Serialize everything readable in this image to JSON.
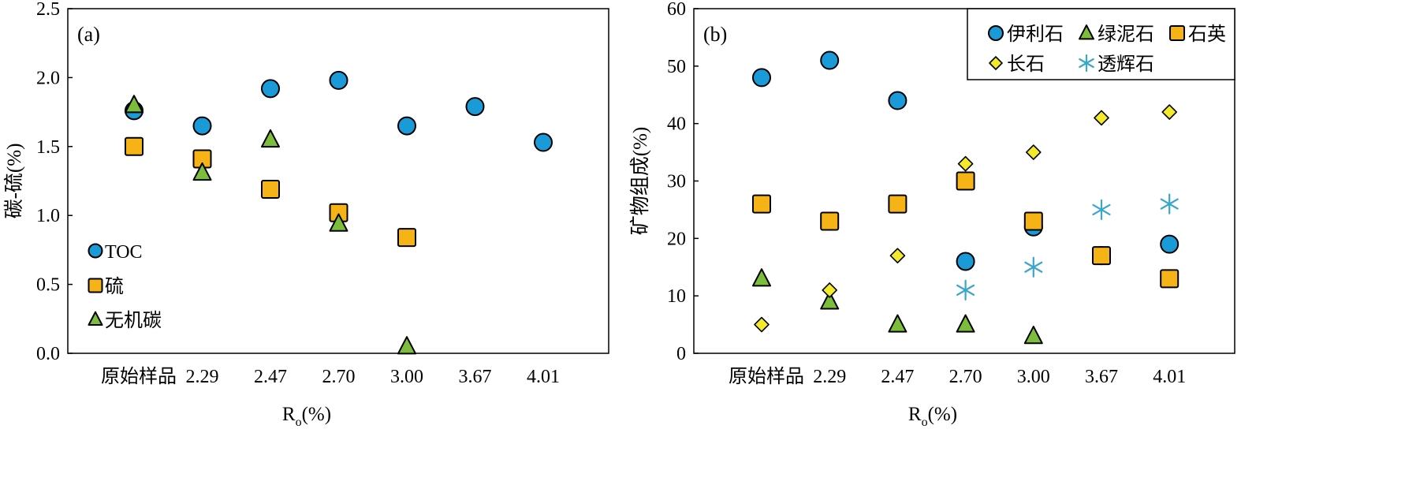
{
  "chart_data": [
    {
      "type": "scatter",
      "panel_label": "(a)",
      "xlabel": "Ro(%)",
      "ylabel": "碳-硫(%)",
      "categories": [
        "原始样品",
        "2.29",
        "2.47",
        "2.70",
        "3.00",
        "3.67",
        "4.01"
      ],
      "ylim": [
        0,
        2.5
      ],
      "yticks": [
        "0.0",
        "0.5",
        "1.0",
        "1.5",
        "2.0",
        "2.5"
      ],
      "grid": false,
      "legend_position": "bottom-left",
      "series": [
        {
          "name": "TOC",
          "marker": "circle",
          "color": "#1a9ad7",
          "values": [
            1.76,
            1.65,
            1.92,
            1.98,
            1.65,
            1.79,
            1.53
          ]
        },
        {
          "name": "硫",
          "marker": "square",
          "color": "#f5b316",
          "values": [
            1.5,
            1.41,
            1.19,
            1.02,
            0.84,
            null,
            null
          ]
        },
        {
          "name": "无机碳",
          "marker": "triangle",
          "color": "#7dbd3c",
          "values": [
            1.8,
            1.31,
            1.55,
            0.94,
            0.05,
            null,
            null
          ]
        }
      ]
    },
    {
      "type": "scatter",
      "panel_label": "(b)",
      "xlabel": "Ro(%)",
      "ylabel": "矿物组成(%)",
      "categories": [
        "原始样品",
        "2.29",
        "2.47",
        "2.70",
        "3.00",
        "3.67",
        "4.01"
      ],
      "ylim": [
        0,
        60
      ],
      "yticks": [
        "0",
        "10",
        "20",
        "30",
        "40",
        "50",
        "60"
      ],
      "grid": false,
      "legend_position": "top-right",
      "series": [
        {
          "name": "伊利石",
          "marker": "circle",
          "color": "#1a9ad7",
          "values": [
            48,
            51,
            44,
            16,
            22,
            17,
            19
          ]
        },
        {
          "name": "绿泥石",
          "marker": "triangle",
          "color": "#7dbd3c",
          "values": [
            13,
            9,
            5,
            5,
            3,
            null,
            null
          ]
        },
        {
          "name": "石英",
          "marker": "square",
          "color": "#f5b316",
          "values": [
            26,
            23,
            26,
            30,
            23,
            17,
            13
          ]
        },
        {
          "name": "长石",
          "marker": "diamond",
          "color": "#f2ea2a",
          "values": [
            5,
            11,
            17,
            33,
            35,
            41,
            42
          ]
        },
        {
          "name": "透辉石",
          "marker": "asterisk",
          "color": "#3aa6c9",
          "values": [
            null,
            null,
            null,
            11,
            15,
            25,
            26
          ]
        }
      ]
    }
  ]
}
